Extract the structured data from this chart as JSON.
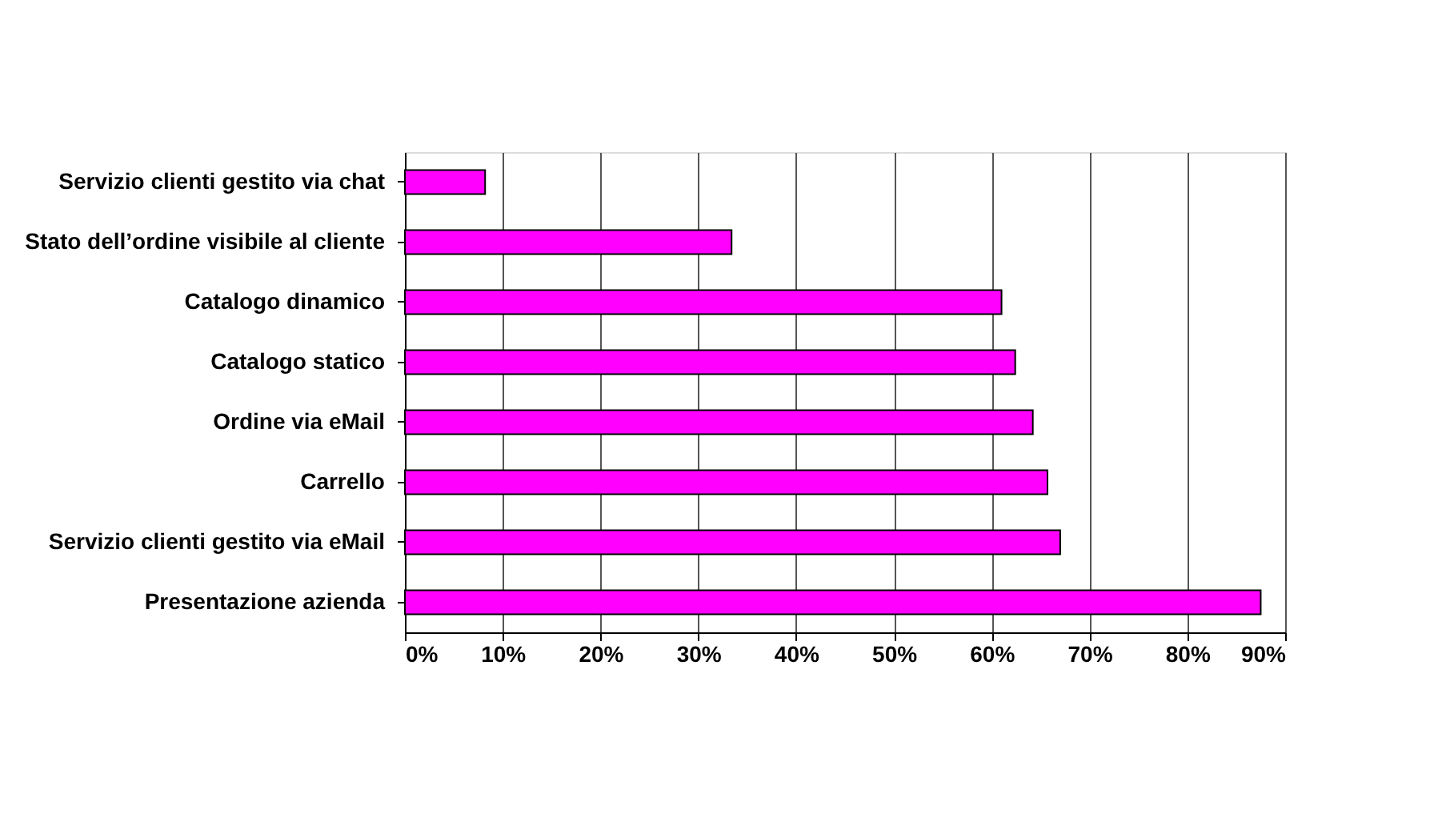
{
  "chart_data": {
    "type": "bar",
    "orientation": "horizontal",
    "categories": [
      "Servizio clienti gestito via chat",
      "Stato dell’ordine visibile al cliente",
      "Catalogo dinamico",
      "Catalogo statico",
      "Ordine via eMail",
      "Carrello",
      "Servizio clienti gestito via eMail",
      "Presentazione azienda"
    ],
    "values": [
      8.2,
      33.4,
      61,
      62.4,
      64.2,
      65.7,
      67,
      87.5
    ],
    "color": "#ff00ff",
    "xlim": [
      0,
      90
    ],
    "xticks": [
      {
        "value": 0,
        "label": "0%"
      },
      {
        "value": 10,
        "label": "10%"
      },
      {
        "value": 20,
        "label": "20%"
      },
      {
        "value": 30,
        "label": "30%"
      },
      {
        "value": 40,
        "label": "40%"
      },
      {
        "value": 50,
        "label": "50%"
      },
      {
        "value": 60,
        "label": "60%"
      },
      {
        "value": 70,
        "label": "70%"
      },
      {
        "value": 80,
        "label": "80%"
      },
      {
        "value": 90,
        "label": "90%"
      }
    ],
    "grid": "x"
  }
}
